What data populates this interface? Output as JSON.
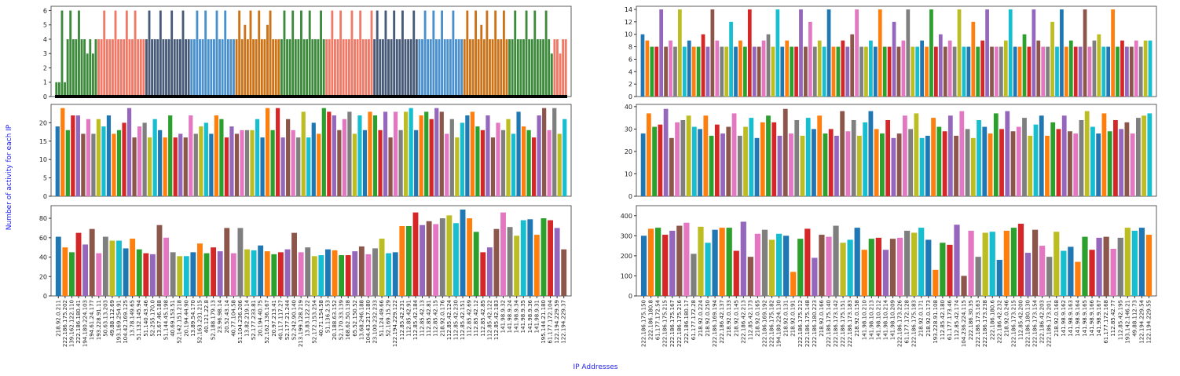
{
  "ylabel": "Number of activity for each IP",
  "xlabel": "IP Addresses",
  "palette": [
    "#1f77b4",
    "#ff7f0e",
    "#2ca02c",
    "#d62728",
    "#9467bd",
    "#8c564b",
    "#e377c2",
    "#7f7f7f",
    "#bcbd22",
    "#17becf"
  ],
  "chart_data": [
    {
      "type": "grouped",
      "ylim": [
        0,
        6.3
      ],
      "yticks": [
        0,
        1,
        2,
        3,
        4,
        5,
        6
      ],
      "series": [
        {
          "color": "#3d8a3d",
          "values": [
            1,
            1,
            6,
            1,
            4,
            6,
            4,
            4,
            6,
            4,
            4,
            3,
            4,
            3,
            4
          ]
        },
        {
          "color": "#f07a68",
          "values": [
            4,
            4,
            6,
            4,
            4,
            4,
            6,
            4,
            4,
            4,
            6,
            4,
            4,
            6,
            4,
            4,
            4
          ]
        },
        {
          "color": "#475a78",
          "values": [
            4,
            6,
            4,
            4,
            4,
            6,
            4,
            4,
            4,
            6,
            4,
            4,
            4,
            6,
            4,
            4
          ]
        },
        {
          "color": "#4a90cc",
          "values": [
            4,
            4,
            6,
            4,
            4,
            6,
            4,
            4,
            4,
            6,
            4,
            4,
            6,
            4,
            4,
            4
          ]
        },
        {
          "color": "#cc7318",
          "values": [
            4,
            6,
            4,
            5,
            4,
            6,
            4,
            4,
            6,
            4,
            4,
            5,
            6,
            4,
            4,
            4
          ]
        },
        {
          "color": "#3d8a3d",
          "values": [
            4,
            6,
            4,
            4,
            6,
            4,
            4,
            6,
            4,
            4,
            6,
            4,
            4,
            4,
            6,
            4
          ]
        },
        {
          "color": "#f07a68",
          "values": [
            4,
            4,
            6,
            4,
            4,
            6,
            4,
            4,
            4,
            6,
            4,
            4,
            6,
            4,
            4,
            4,
            6
          ]
        },
        {
          "color": "#475a78",
          "values": [
            4,
            6,
            4,
            4,
            6,
            4,
            4,
            6,
            4,
            4,
            6,
            4,
            4,
            4,
            6,
            4
          ]
        },
        {
          "color": "#4a90cc",
          "values": [
            4,
            4,
            6,
            4,
            4,
            6,
            4,
            4,
            6,
            4,
            4,
            4,
            6,
            4,
            4,
            4
          ]
        },
        {
          "color": "#cc7318",
          "values": [
            4,
            6,
            4,
            4,
            6,
            4,
            5,
            4,
            6,
            4,
            4,
            6,
            4,
            4,
            6,
            4
          ]
        },
        {
          "color": "#3d8a3d",
          "values": [
            4,
            4,
            6,
            4,
            4,
            4,
            6,
            4,
            4,
            6,
            4,
            4,
            4,
            6,
            4,
            3
          ]
        },
        {
          "color": "#f07a68",
          "values": [
            4,
            4,
            3,
            4,
            4
          ]
        }
      ]
    },
    {
      "type": "bar",
      "ylim": [
        0,
        14.5
      ],
      "yticks": [
        0,
        2,
        4,
        6,
        8,
        10,
        12,
        14
      ],
      "values": [
        10,
        9,
        8,
        8,
        14,
        8,
        9,
        8,
        14,
        8,
        9,
        8,
        8,
        10,
        8,
        14,
        9,
        8,
        8,
        12,
        8,
        9,
        8,
        14,
        8,
        8,
        9,
        10,
        8,
        14,
        8,
        9,
        8,
        8,
        14,
        8,
        12,
        8,
        9,
        8,
        14,
        8,
        8,
        9,
        8,
        10,
        14,
        8,
        8,
        9,
        8,
        14,
        8,
        8,
        12,
        8,
        9,
        14,
        8,
        8,
        9,
        8,
        14,
        8,
        10,
        8,
        9,
        8,
        14,
        8,
        8,
        12,
        8,
        9,
        14,
        8,
        8,
        8,
        9,
        14,
        8,
        8,
        10,
        8,
        14,
        9,
        8,
        8,
        12,
        8,
        14,
        8,
        9,
        8,
        8,
        14,
        8,
        9,
        10,
        8,
        8,
        14,
        8,
        9,
        8,
        8,
        9,
        8,
        9,
        9
      ]
    },
    {
      "type": "bar",
      "ylim": [
        0,
        25
      ],
      "yticks": [
        0,
        5,
        10,
        15,
        20
      ],
      "values": [
        19,
        24,
        18,
        22,
        22,
        17,
        21,
        17,
        21,
        19,
        22,
        17,
        18,
        20,
        24,
        16,
        19,
        20,
        16,
        21,
        18,
        16,
        22,
        16,
        17,
        16,
        22,
        17,
        19,
        20,
        17,
        22,
        21,
        16,
        19,
        17,
        18,
        18,
        18,
        21,
        16,
        24,
        18,
        24,
        16,
        21,
        18,
        16,
        23,
        16,
        20,
        17,
        24,
        23,
        22,
        18,
        21,
        23,
        17,
        22,
        18,
        23,
        22,
        18,
        23,
        16,
        23,
        18,
        23,
        24,
        18,
        22,
        23,
        21,
        24,
        23,
        17,
        21,
        16,
        20,
        22,
        23,
        19,
        18,
        22,
        16,
        20,
        18,
        21,
        17,
        23,
        19,
        18,
        16,
        22,
        24,
        18,
        24,
        17,
        21
      ]
    },
    {
      "type": "bar",
      "ylim": [
        0,
        41
      ],
      "yticks": [
        0,
        10,
        20,
        30,
        40
      ],
      "values": [
        28,
        37,
        31,
        32,
        39,
        26,
        33,
        34,
        36,
        31,
        30,
        36,
        27,
        32,
        28,
        31,
        37,
        27,
        31,
        35,
        26,
        33,
        36,
        33,
        27,
        39,
        28,
        34,
        27,
        35,
        30,
        36,
        28,
        30,
        27,
        38,
        29,
        34,
        27,
        33,
        38,
        30,
        28,
        34,
        26,
        28,
        36,
        30,
        37,
        26,
        27,
        35,
        31,
        29,
        36,
        27,
        38,
        30,
        26,
        34,
        31,
        28,
        37,
        30,
        38,
        29,
        31,
        35,
        27,
        32,
        36,
        27,
        33,
        30,
        36,
        29,
        28,
        34,
        38,
        31,
        28,
        37,
        29,
        34,
        30,
        33,
        28,
        35,
        36,
        37
      ]
    },
    {
      "type": "bar",
      "ylim": [
        0,
        93
      ],
      "yticks": [
        0,
        20,
        40,
        60,
        80
      ],
      "categories": [
        "218.92.0.211",
        "222.186.175.202",
        "139.162.122.110",
        "222.186.180.41",
        "194.180.224.103",
        "194.61.24.177",
        "193.228.91.11",
        "50.63.13.203",
        "49.88.112.69",
        "193.169.254.91",
        "104.42.169.125",
        "13.78.149.65",
        "51.132.145.94",
        "51.140.43.46",
        "52.255.170.0",
        "13.67.46.188",
        "51.144.45.198",
        "40.69.153.51",
        "52.142.151.218",
        "20.194.44.90",
        "13.89.54.170",
        "52.163.231.215",
        "40.121.22.8",
        "52.188.179.13",
        "23.96.98.14",
        "20.52.43.14",
        "40.77.104.58",
        "51.104.236.206",
        "13.82.219.14",
        "52.177.233.81",
        "20.194.40.75",
        "52.162.136.167",
        "20.97.213.41",
        "40.117.117.27",
        "52.177.21.244",
        "52.242.90.140",
        "213.199.128.219",
        "13.83.122.22",
        "52.172.153.254",
        "40.71.154.58",
        "51.136.2.53",
        "20.188.63.152",
        "52.170.33.139",
        "168.62.50.138",
        "65.52.150.52",
        "13.68.246.188",
        "104.43.217.180",
        "23.100.232.233",
        "51.124.49.66",
        "52.169.15.29",
        "122.194.229.122",
        "112.85.42.231",
        "112.85.42.91",
        "112.85.42.184",
        "112.85.42.13",
        "112.85.42.81",
        "112.85.42.15",
        "218.92.0.176",
        "112.85.42.124",
        "112.85.42.230",
        "112.85.42.151",
        "112.85.42.69",
        "112.85.42.12",
        "112.85.42.85",
        "112.85.42.122",
        "112.85.42.183",
        "141.98.9.32",
        "141.98.9.24",
        "141.98.9.34",
        "141.98.9.35",
        "141.98.9.36",
        "141.98.9.31",
        "195.144.21.180",
        "61.177.172.104",
        "122.194.229.59",
        "122.194.229.37"
      ],
      "values": [
        61,
        50,
        45,
        65,
        53,
        69,
        44,
        61,
        57,
        57,
        49,
        59,
        48,
        44,
        43,
        73,
        60,
        45,
        41,
        41,
        45,
        54,
        44,
        50,
        46,
        70,
        44,
        70,
        48,
        47,
        52,
        46,
        43,
        45,
        48,
        65,
        45,
        50,
        41,
        42,
        48,
        47,
        42,
        42,
        46,
        51,
        43,
        49,
        59,
        44,
        45,
        72,
        72,
        86,
        73,
        77,
        74,
        80,
        83,
        75,
        89,
        80,
        66,
        45,
        50,
        69,
        86,
        71,
        62,
        78,
        79,
        63,
        80,
        78,
        70,
        48
      ]
    },
    {
      "type": "bar",
      "ylim": [
        0,
        450
      ],
      "yticks": [
        0,
        100,
        200,
        300,
        400
      ],
      "categories": [
        "222.186.175.150",
        "222.186.180.8",
        "61.177.172.54",
        "222.186.175.215",
        "222.186.175.167",
        "222.186.175.216",
        "222.186.180.17",
        "61.177.172.28",
        "218.92.0.224",
        "218.92.0.250",
        "222.186.169.194",
        "222.186.42.137",
        "218.92.0.133",
        "218.92.0.145",
        "222.186.42.213",
        "112.85.42.173",
        "218.92.0.165",
        "222.186.169.192",
        "222.186.175.182",
        "194.180.224.130",
        "218.92.0.131",
        "218.92.0.191",
        "222.186.175.212",
        "222.186.175.148",
        "222.186.180.223",
        "218.92.0.166",
        "222.186.175.140",
        "222.186.173.142",
        "222.186.175.151",
        "222.186.173.183",
        "218.92.0.158",
        "141.98.10.210",
        "141.98.10.213",
        "141.98.10.212",
        "141.98.10.214",
        "141.98.10.209",
        "222.186.173.226",
        "61.177.172.128",
        "222.186.175.183",
        "218.92.0.171",
        "218.92.0.173",
        "193.228.91.108",
        "112.85.42.180",
        "61.177.173.46",
        "112.85.42.174",
        "104.236.224.115",
        "222.186.30.35",
        "222.186.173.163",
        "222.186.173.238",
        "222.186.180.6",
        "222.186.42.232",
        "218.92.0.246",
        "222.186.173.215",
        "112.85.42.200",
        "222.186.180.130",
        "222.186.173.154",
        "222.186.42.203",
        "222.186.173.201",
        "218.92.0.168",
        "141.98.9.162",
        "141.98.9.163",
        "141.98.9.164",
        "141.98.9.165",
        "141.98.9.166",
        "141.98.9.167",
        "61.177.172.168",
        "112.85.42.77",
        "112.85.42.195",
        "193.142.146.21",
        "49.88.112.73",
        "122.194.229.54",
        "122.194.229.55"
      ],
      "values": [
        300,
        335,
        340,
        305,
        325,
        350,
        365,
        210,
        345,
        265,
        330,
        340,
        340,
        225,
        370,
        195,
        310,
        330,
        280,
        310,
        300,
        120,
        285,
        335,
        190,
        305,
        295,
        350,
        265,
        280,
        340,
        230,
        285,
        290,
        230,
        285,
        290,
        325,
        315,
        340,
        280,
        130,
        265,
        255,
        355,
        100,
        325,
        195,
        315,
        320,
        180,
        325,
        340,
        360,
        215,
        330,
        250,
        195,
        320,
        225,
        245,
        170,
        295,
        230,
        290,
        295,
        235,
        290,
        340,
        325,
        340,
        305
      ]
    }
  ]
}
